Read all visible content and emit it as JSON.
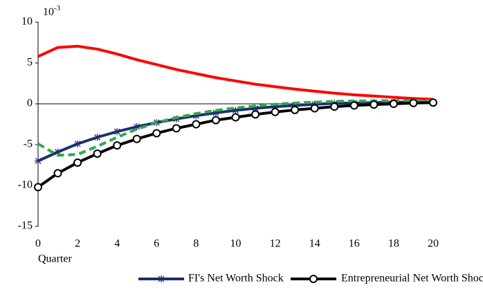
{
  "chart_data": {
    "type": "line",
    "scale_label": "10",
    "scale_exponent": "-3",
    "x_label": "Quarter",
    "x": [
      0,
      1,
      2,
      3,
      4,
      5,
      6,
      7,
      8,
      9,
      10,
      11,
      12,
      13,
      14,
      15,
      16,
      17,
      18,
      19,
      20
    ],
    "xlim": [
      0,
      20
    ],
    "xticks": [
      0,
      2,
      4,
      6,
      8,
      10,
      12,
      14,
      16,
      18,
      20
    ],
    "ylim": [
      -15,
      10
    ],
    "yticks": [
      -15,
      -10,
      -5,
      0,
      5,
      10
    ],
    "series": [
      {
        "color": "#ff0000",
        "marker": "none",
        "dashed": false,
        "values": [
          5.8,
          6.9,
          7.05,
          6.7,
          6.1,
          5.4,
          4.8,
          4.2,
          3.7,
          3.2,
          2.8,
          2.4,
          2.1,
          1.8,
          1.55,
          1.3,
          1.1,
          0.95,
          0.8,
          0.65,
          0.55
        ]
      },
      {
        "name": "FI's Net Worth Shock",
        "color": "#1f2f6e",
        "marker": "star",
        "dashed": false,
        "values": [
          -7,
          -5.9,
          -4.9,
          -4.1,
          -3.4,
          -2.8,
          -2.3,
          -1.85,
          -1.45,
          -1.1,
          -0.8,
          -0.55,
          -0.35,
          -0.2,
          -0.05,
          0.05,
          0.1,
          0.15,
          0.2,
          0.2,
          0.2
        ]
      },
      {
        "color": "#2eaa4a",
        "marker": "none",
        "dashed": true,
        "values": [
          -4.9,
          -6.3,
          -6.2,
          -5.2,
          -4.1,
          -3.1,
          -2.3,
          -1.7,
          -1.2,
          -0.8,
          -0.5,
          -0.25,
          -0.05,
          0.1,
          0.2,
          0.3,
          0.35,
          0.35,
          0.4,
          0.4,
          0.4
        ]
      },
      {
        "name": "Entrepreneurial Net Worth Shock",
        "color": "#000000",
        "marker": "circle",
        "dashed": false,
        "values": [
          -10.2,
          -8.5,
          -7.2,
          -6.1,
          -5.1,
          -4.3,
          -3.6,
          -3.0,
          -2.5,
          -2.0,
          -1.65,
          -1.3,
          -1.0,
          -0.75,
          -0.55,
          -0.35,
          -0.2,
          -0.1,
          0.0,
          0.1,
          0.15
        ]
      }
    ]
  }
}
